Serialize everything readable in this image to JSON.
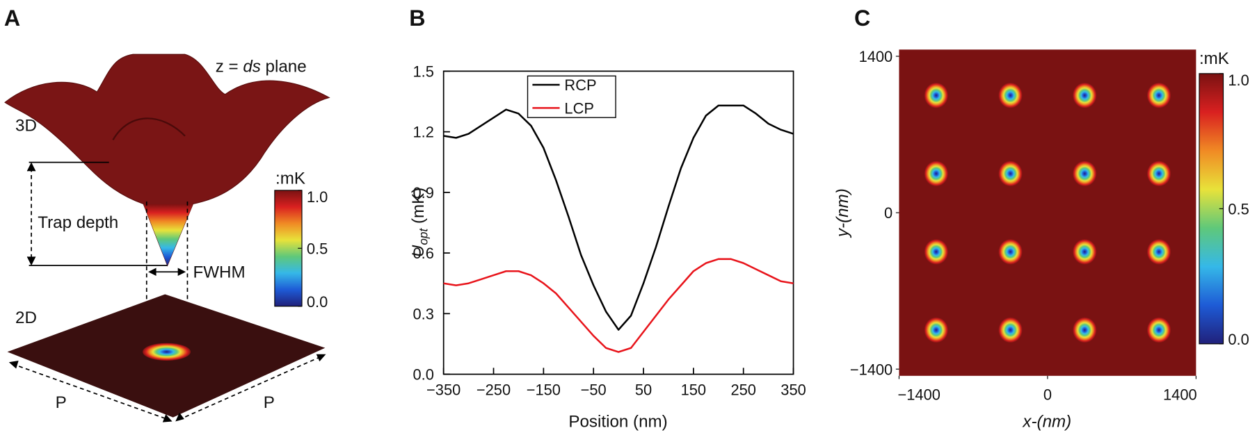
{
  "chart_data": [
    {
      "type": "illustration",
      "panel": "A",
      "plane_label": [
        "z = ",
        "ds",
        " plane"
      ],
      "label_3d": "3D",
      "label_2d": "2D",
      "trap_depth": "Trap depth",
      "fwhm": "FWHM",
      "period_labels": [
        "P",
        "P"
      ],
      "colorbar": {
        "label": ":mK",
        "lim": [
          0,
          1
        ],
        "ticks": [
          {
            "value": 0,
            "label": "0.0"
          },
          0.5,
          {
            "value": 1,
            "label": "1.0"
          }
        ],
        "colormap": [
          "#20207a",
          "#1e5bd6",
          "#35b8e8",
          "#5fc87a",
          "#e8e23a",
          "#f08a24",
          "#d92020",
          "#7a1212"
        ]
      }
    },
    {
      "type": "line",
      "panel": "B",
      "xlabel": "Position (nm)",
      "ylabel": [
        "U",
        "opt",
        " (mK)"
      ],
      "x": [
        -350,
        -325,
        -300,
        -275,
        -250,
        -225,
        -200,
        -175,
        -150,
        -125,
        -100,
        -75,
        -50,
        -25,
        0,
        25,
        50,
        75,
        100,
        125,
        150,
        175,
        200,
        225,
        250,
        275,
        300,
        325,
        350
      ],
      "series": [
        {
          "name": "RCP",
          "color": "#000000",
          "values": [
            1.18,
            1.17,
            1.19,
            1.23,
            1.27,
            1.31,
            1.29,
            1.23,
            1.12,
            0.96,
            0.78,
            0.59,
            0.44,
            0.31,
            0.22,
            0.29,
            0.45,
            0.63,
            0.83,
            1.02,
            1.17,
            1.28,
            1.33,
            1.33,
            1.33,
            1.29,
            1.24,
            1.21,
            1.19
          ]
        },
        {
          "name": "LCP",
          "color": "#e8141b",
          "values": [
            0.45,
            0.44,
            0.45,
            0.47,
            0.49,
            0.51,
            0.51,
            0.49,
            0.45,
            0.4,
            0.33,
            0.26,
            0.19,
            0.13,
            0.11,
            0.13,
            0.21,
            0.29,
            0.37,
            0.44,
            0.51,
            0.55,
            0.57,
            0.57,
            0.55,
            0.52,
            0.49,
            0.46,
            0.45
          ]
        }
      ],
      "xlim": [
        -350,
        350
      ],
      "xticks": [
        {
          "value": -350,
          "label": "−350"
        },
        {
          "value": -250,
          "label": "−250"
        },
        {
          "value": -150,
          "label": "−150"
        },
        {
          "value": -50,
          "label": "−50"
        },
        50,
        150,
        250,
        350
      ],
      "ylim": [
        0,
        1.5
      ],
      "yticks": [
        {
          "value": 0,
          "label": "0.0"
        },
        0.3,
        0.6,
        0.9,
        1.2,
        1.5
      ],
      "legend": "upper left"
    },
    {
      "type": "heatmap",
      "panel": "C",
      "xlabel": "x-(nm)",
      "ylabel": "y-(nm)",
      "spot_x": [
        -1050,
        -350,
        350,
        1050
      ],
      "spot_y": [
        1050,
        350,
        -350,
        -1050
      ],
      "xlim": [
        -1400,
        1400
      ],
      "xticks": [
        {
          "value": -1400,
          "label": "−1400"
        },
        0,
        1400
      ],
      "ylim": [
        -1460,
        1460
      ],
      "yticks": [
        {
          "value": -1400,
          "label": "−1400"
        },
        0,
        1400
      ],
      "colorbar": {
        "label": ":mK",
        "lim": [
          0,
          1
        ],
        "ticks": [
          {
            "value": 0,
            "label": "0.0"
          },
          0.5,
          {
            "value": 1,
            "label": "1.0"
          }
        ],
        "colormap": [
          "#20207a",
          "#1e5bd6",
          "#35b8e8",
          "#5fc87a",
          "#e8e23a",
          "#f08a24",
          "#d92020",
          "#7a1212"
        ]
      }
    }
  ]
}
